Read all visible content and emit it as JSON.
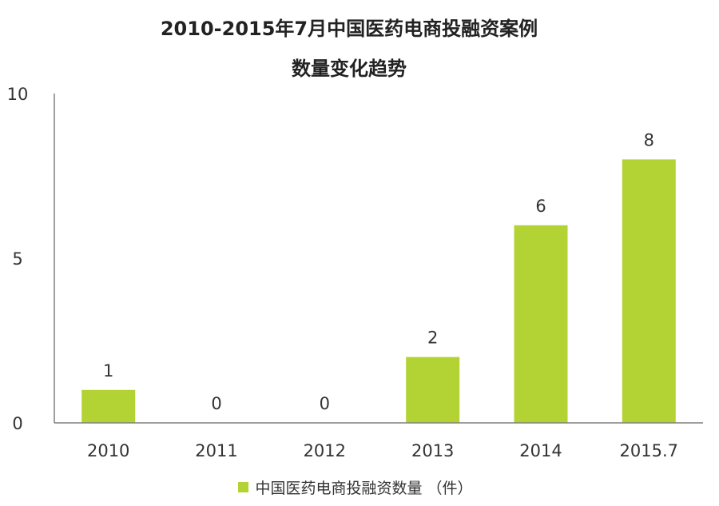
{
  "title": {
    "line1": "2010-2015年7月中国医药电商投融资案例",
    "line2": "数量变化趋势"
  },
  "chart_data": {
    "type": "bar",
    "title": "2010-2015年7月中国医药电商投融资案例数量变化趋势",
    "categories": [
      "2010",
      "2011",
      "2012",
      "2013",
      "2014",
      "2015.7"
    ],
    "series": [
      {
        "name": "中国医药电商投融资数量 （件）",
        "values": [
          1,
          0,
          0,
          2,
          6,
          8
        ],
        "color": "#b3d334"
      }
    ],
    "data_labels": [
      "1",
      "0",
      "0",
      "2",
      "6",
      "8"
    ],
    "ylim": [
      0,
      10
    ],
    "y_ticks": [
      0,
      5,
      10
    ],
    "y_tick_labels": [
      "0",
      "5",
      "10"
    ],
    "xlabel": "",
    "ylabel": "",
    "grid": false,
    "legend_position": "bottom"
  },
  "colors": {
    "bar": "#b3d334",
    "axis": "#7f7f7f",
    "text": "#333333"
  }
}
